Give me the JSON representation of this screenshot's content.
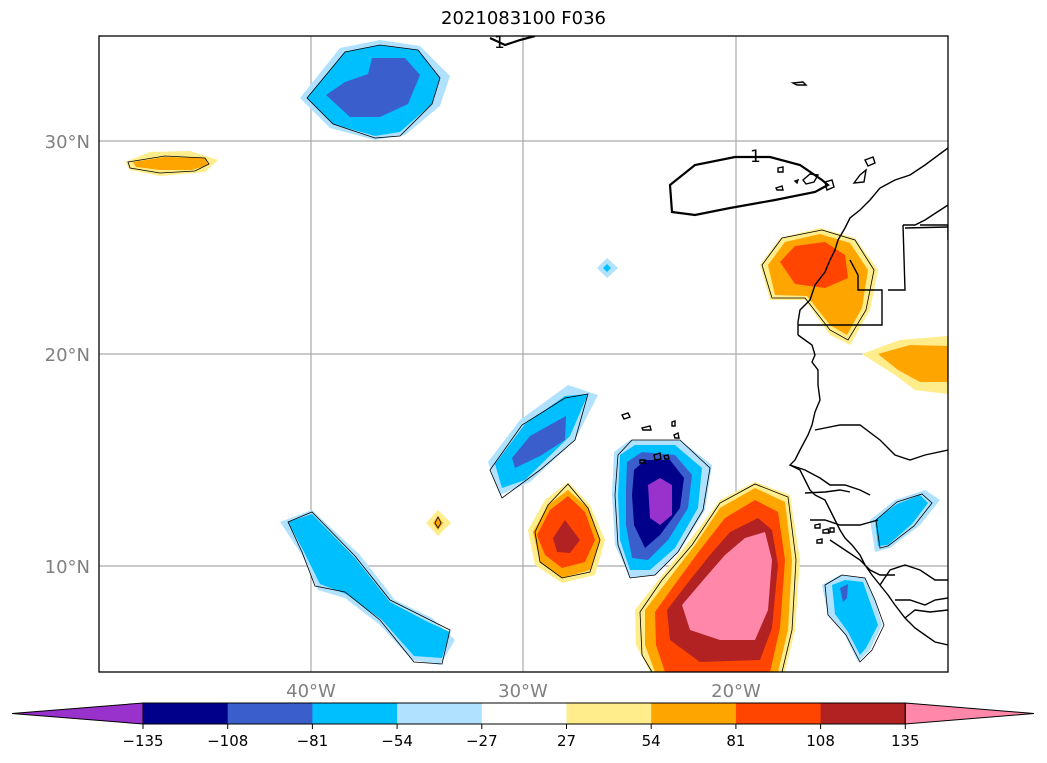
{
  "title": "2021083100 F036",
  "map": {
    "region": "Eastern tropical Atlantic / West Africa",
    "lat_labels": [
      "30°N",
      "20°N",
      "10°N"
    ],
    "lon_labels": [
      "40°W",
      "30°W",
      "20°W"
    ],
    "grid_color": "#aaaaaa",
    "coastline_color": "#000000",
    "contour_labels": [
      "1",
      "1"
    ]
  },
  "colorbar": {
    "ticks": [
      "−135",
      "−108",
      "−81",
      "−54",
      "−27",
      "27",
      "54",
      "81",
      "108",
      "135"
    ],
    "bins": [
      {
        "label": "< -135",
        "color": "#9932cc"
      },
      {
        "label": "-135 to -108",
        "color": "#00008b"
      },
      {
        "label": "-108 to -81",
        "color": "#3a5fcd"
      },
      {
        "label": "-81 to -54",
        "color": "#00bfff"
      },
      {
        "label": "-54 to -27",
        "color": "#b0e2ff"
      },
      {
        "label": "-27 to 27",
        "color": "#ffffff"
      },
      {
        "label": "27 to 54",
        "color": "#ffec8b"
      },
      {
        "label": "54 to 81",
        "color": "#ffa500"
      },
      {
        "label": "81 to 108",
        "color": "#ff4500"
      },
      {
        "label": "108 to 135",
        "color": "#b22222"
      },
      {
        "label": "> 135",
        "color": "#ff88aa"
      }
    ],
    "extend": "both"
  }
}
